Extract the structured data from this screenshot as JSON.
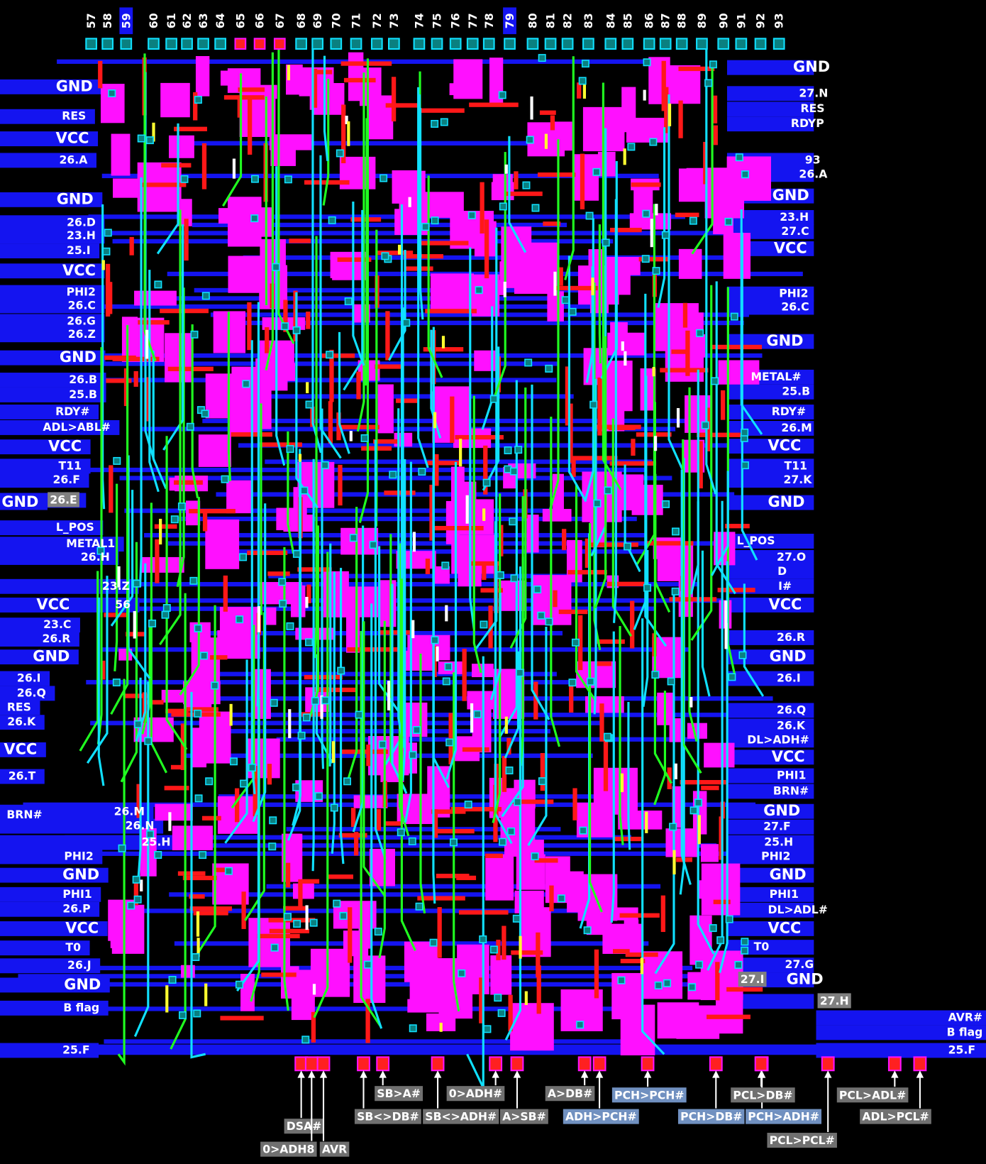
{
  "top_pins": [
    "57",
    "58",
    "59",
    "60",
    "61",
    "62",
    "63",
    "64",
    "65",
    "66",
    "67",
    "68",
    "69",
    "70",
    "71",
    "72",
    "73",
    "74",
    "75",
    "76",
    "77",
    "78",
    "79",
    "80",
    "81",
    "82",
    "83",
    "84",
    "85",
    "86",
    "87",
    "88",
    "89",
    "90",
    "91",
    "92",
    "93"
  ],
  "left_labels": [
    "GND",
    "RES",
    "VCC",
    "26.A",
    "GND",
    "26.D",
    "23.H",
    "25.I",
    "VCC",
    "PHI2",
    "26.C",
    "26.G",
    "26.Z",
    "GND",
    "26.B",
    "25.B",
    "RDY#",
    "ADL>ABL#",
    "VCC",
    "T11",
    "26.F",
    "GND",
    "26.E",
    "L_POS",
    "METAL1",
    "26.H",
    "23.Z",
    "VCC",
    "56",
    "23.C",
    "26.R",
    "GND",
    "26.I",
    "26.Q",
    "RES",
    "26.K",
    "VCC",
    "26.T",
    "BRN#",
    "26.M",
    "26.N",
    "25.H",
    "PHI2",
    "GND",
    "PHI1",
    "26.P",
    "VCC",
    "T0",
    "26.J",
    "GND",
    "B flag",
    "25.F"
  ],
  "right_labels": [
    "GND",
    "27.N",
    "RES",
    "RDYP",
    "93",
    "26.A",
    "GND",
    "23.H",
    "27.C",
    "VCC",
    "PHI2",
    "26.C",
    "GND",
    "METAL#",
    "25.B",
    "RDY#",
    "26.M",
    "VCC",
    "T11",
    "27.K",
    "GND",
    "L_POS",
    "27.O",
    "D",
    "I#",
    "VCC",
    "26.R",
    "GND",
    "26.I",
    "26.Q",
    "26.K",
    "DL>ADH#",
    "VCC",
    "PHI1",
    "BRN#",
    "GND",
    "27.F",
    "25.H",
    "PHI2",
    "GND",
    "PHI1",
    "DL>ADL#",
    "VCC",
    "T0",
    "27.G",
    "27.I",
    "GND",
    "27.H",
    "AVR#",
    "B flag",
    "25.F"
  ],
  "bottom_labels": [
    "DSA#",
    "0>ADH8",
    "AVR",
    "SB>A#",
    "SB<>DB#",
    "SB<>ADH#",
    "0>ADH#",
    "A>SB#",
    "A>DB#",
    "ADH>PCH#",
    "PCH>PCH#",
    "PCH>DB#",
    "PCH>ADH#",
    "PCL>DB#",
    "PCL>PCL#",
    "PCL>ADL#",
    "ADL>PCL#"
  ]
}
